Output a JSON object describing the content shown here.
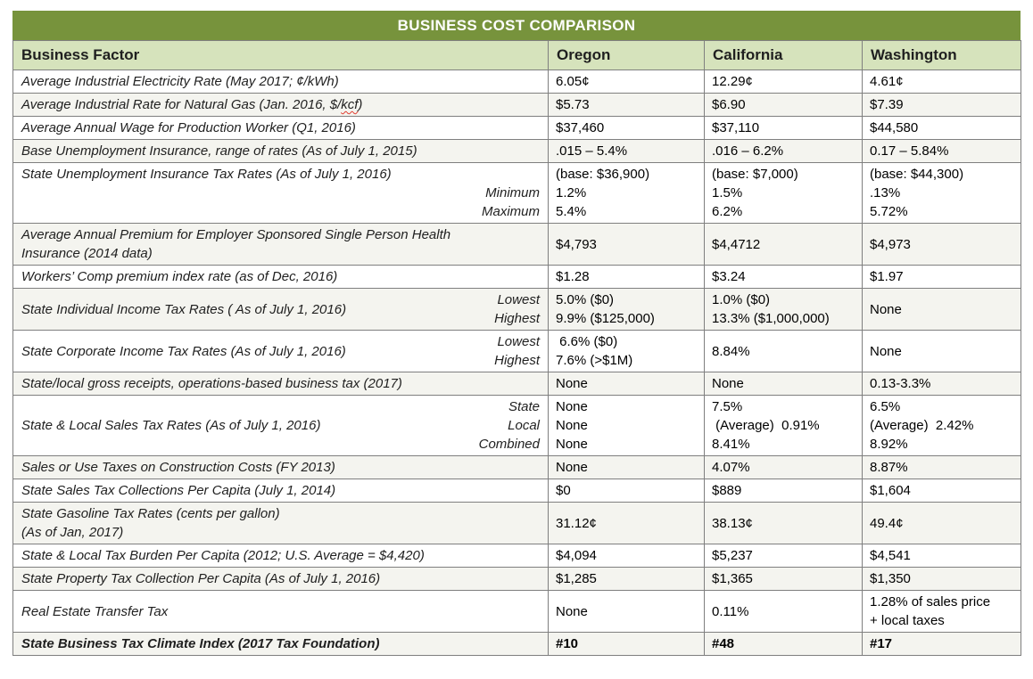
{
  "title": "BUSINESS COST COMPARISON",
  "columns": [
    "Business Factor",
    "Oregon",
    "California",
    "Washington"
  ],
  "colors": {
    "title_bg": "#77933C",
    "header_bg": "#D6E3BC",
    "grid": "#7F7F7F",
    "alt_row": "#F4F4EF",
    "squiggle": "#E03C31"
  },
  "rows": [
    {
      "factor": [
        "Average Industrial Electricity Rate (May 2017; ¢/kWh)"
      ],
      "values": [
        [
          "6.05¢"
        ],
        [
          "12.29¢"
        ],
        [
          "4.61¢"
        ]
      ]
    },
    {
      "factor": [
        "Average Industrial Rate for Natural Gas (Jan. 2016, $/kcf)"
      ],
      "squiggle": "kcf",
      "values": [
        [
          "$5.73"
        ],
        [
          "$6.90"
        ],
        [
          "$7.39"
        ]
      ]
    },
    {
      "factor": [
        "Average Annual Wage for Production Worker (Q1, 2016)"
      ],
      "values": [
        [
          "$37,460"
        ],
        [
          "$37,110"
        ],
        [
          "$44,580"
        ]
      ]
    },
    {
      "factor": [
        "Base Unemployment Insurance, range of rates  (As of July 1, 2015)"
      ],
      "values": [
        [
          ".015 – 5.4%"
        ],
        [
          ".016 – 6.2%"
        ],
        [
          "0.17 – 5.84%"
        ]
      ]
    },
    {
      "factor": [
        "State Unemployment Insurance Tax Rates (As of July 1, 2016)"
      ],
      "sub_labels": [
        "Minimum",
        "Maximum"
      ],
      "factor_align": "top",
      "values": [
        [
          "(base: $36,900)",
          "1.2%",
          "5.4%"
        ],
        [
          "(base: $7,000)",
          "1.5%",
          "6.2%"
        ],
        [
          "(base: $44,300)",
          ".13%",
          "5.72%"
        ]
      ]
    },
    {
      "factor": [
        "Average Annual Premium for Employer Sponsored Single Person Health",
        "Insurance (2014 data)"
      ],
      "values": [
        [
          "$4,793"
        ],
        [
          "$4,4712"
        ],
        [
          "$4,973"
        ]
      ]
    },
    {
      "factor": [
        "Workers’ Comp premium index rate (as of Dec, 2016)"
      ],
      "values": [
        [
          "$1.28"
        ],
        [
          "$3.24"
        ],
        [
          "$1.97"
        ]
      ]
    },
    {
      "factor": [
        "State Individual Income Tax Rates ( As of July 1, 2016)"
      ],
      "sub_labels": [
        "Lowest",
        "Highest"
      ],
      "values": [
        [
          "5.0% ($0)",
          "9.9% ($125,000)"
        ],
        [
          "1.0% ($0)",
          "13.3% ($1,000,000)"
        ],
        [
          "None"
        ]
      ]
    },
    {
      "factor": [
        "State Corporate Income Tax Rates (As of July 1, 2016)"
      ],
      "sub_labels": [
        "Lowest",
        "Highest"
      ],
      "values": [
        [
          " 6.6% ($0)",
          "7.6% (>$1M)"
        ],
        [
          "8.84%"
        ],
        [
          "None"
        ]
      ]
    },
    {
      "factor": [
        "State/local gross receipts, operations-based business tax (2017)"
      ],
      "values": [
        [
          "None"
        ],
        [
          "None"
        ],
        [
          "0.13-3.3%"
        ]
      ]
    },
    {
      "factor": [
        "State & Local Sales Tax Rates (As of July 1, 2016)"
      ],
      "sub_labels": [
        "State",
        "Local",
        "Combined"
      ],
      "values": [
        [
          "None",
          "None",
          "None"
        ],
        [
          "7.5%",
          " (Average)  0.91%",
          "8.41%"
        ],
        [
          "6.5%",
          "(Average)  2.42%",
          "8.92%"
        ]
      ]
    },
    {
      "factor": [
        "Sales or Use Taxes on Construction Costs (FY 2013)"
      ],
      "values": [
        [
          "None"
        ],
        [
          "4.07%"
        ],
        [
          "8.87%"
        ]
      ]
    },
    {
      "factor": [
        "State Sales Tax Collections Per Capita (July 1, 2014)"
      ],
      "values": [
        [
          "$0"
        ],
        [
          "$889"
        ],
        [
          "$1,604"
        ]
      ]
    },
    {
      "factor": [
        "State Gasoline Tax Rates (cents per gallon)",
        "(As of Jan, 2017)"
      ],
      "values": [
        [
          "31.12¢"
        ],
        [
          "38.13¢"
        ],
        [
          "49.4¢"
        ]
      ]
    },
    {
      "factor": [
        "State & Local Tax Burden Per Capita (2012; U.S. Average = $4,420)"
      ],
      "values": [
        [
          "$4,094"
        ],
        [
          "$5,237"
        ],
        [
          "$4,541"
        ]
      ]
    },
    {
      "factor": [
        "State Property Tax Collection Per Capita (As of July 1, 2016)"
      ],
      "values": [
        [
          "$1,285"
        ],
        [
          "$1,365"
        ],
        [
          "$1,350"
        ]
      ]
    },
    {
      "factor": [
        "Real Estate Transfer Tax"
      ],
      "values": [
        [
          "None"
        ],
        [
          "0.11%"
        ],
        [
          "1.28% of sales price",
          "+ local taxes"
        ]
      ]
    },
    {
      "factor": [
        "State Business Tax Climate Index (2017 Tax Foundation)"
      ],
      "bold": true,
      "values": [
        [
          "#10"
        ],
        [
          "#48"
        ],
        [
          "#17"
        ]
      ]
    }
  ]
}
